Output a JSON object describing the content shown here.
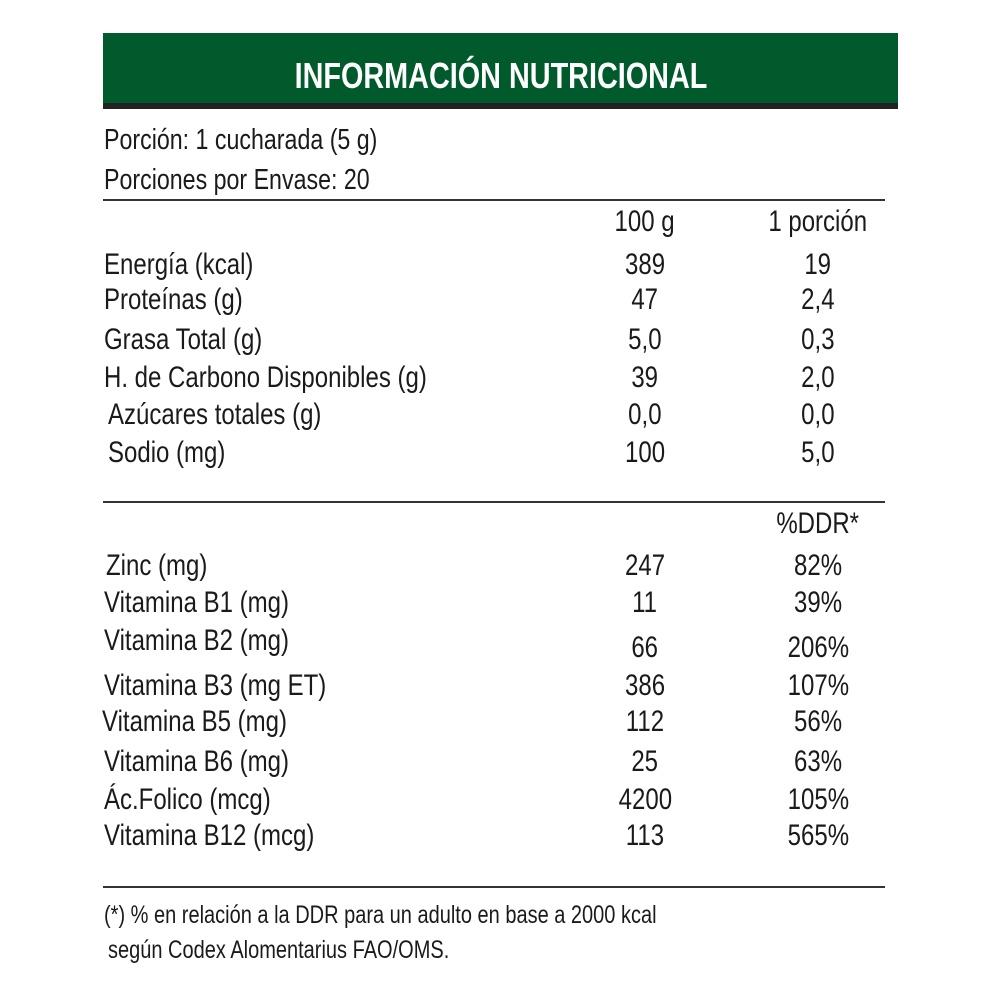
{
  "header": {
    "title": "INFORMACIÓN NUTRICIONAL",
    "color": "#005a2b"
  },
  "serving": {
    "portion": "Porción: 1 cucharada (5 g)",
    "portions_per_pack": "Porciones por Envase: 20"
  },
  "macros": {
    "col_100g": "100 g",
    "col_portion": "1 porción",
    "rows": [
      {
        "label": "Energía (kcal)",
        "per100": "389",
        "portion": "19"
      },
      {
        "label": "Proteínas (g)",
        "per100": "47",
        "portion": "2,4"
      },
      {
        "label": "Grasa Total (g)",
        "per100": "5,0",
        "portion": "0,3"
      },
      {
        "label": "H. de Carbono Disponibles (g)",
        "per100": "39",
        "portion": "2,0"
      },
      {
        "label": "Azúcares totales (g)",
        "per100": "0,0",
        "portion": "0,0"
      },
      {
        "label": "Sodio (mg)",
        "per100": "100",
        "portion": "5,0"
      }
    ]
  },
  "micros": {
    "col_ddr": "%DDR*",
    "rows": [
      {
        "label": "Zinc (mg)",
        "per100": "247",
        "ddr": "82%"
      },
      {
        "label": "Vitamina B1 (mg)",
        "per100": "11",
        "ddr": "39%"
      },
      {
        "label": "Vitamina B2 (mg)",
        "per100": "66",
        "ddr": "206%"
      },
      {
        "label": "Vitamina B3 (mg ET)",
        "per100": "386",
        "ddr": "107%"
      },
      {
        "label": "Vitamina B5 (mg)",
        "per100": "112",
        "ddr": "56%"
      },
      {
        "label": "Vitamina B6 (mg)",
        "per100": "25",
        "ddr": "63%"
      },
      {
        "label": "Ác.Folico (mcg)",
        "per100": "4200",
        "ddr": "105%"
      },
      {
        "label": "Vitamina B12 (mcg)",
        "per100": "113",
        "ddr": "565%"
      }
    ]
  },
  "footnote": {
    "line1": "(*) % en relación a la DDR para un adulto en base a 2000 kcal",
    "line2": "según Codex Alomentarius FAO/OMS."
  }
}
